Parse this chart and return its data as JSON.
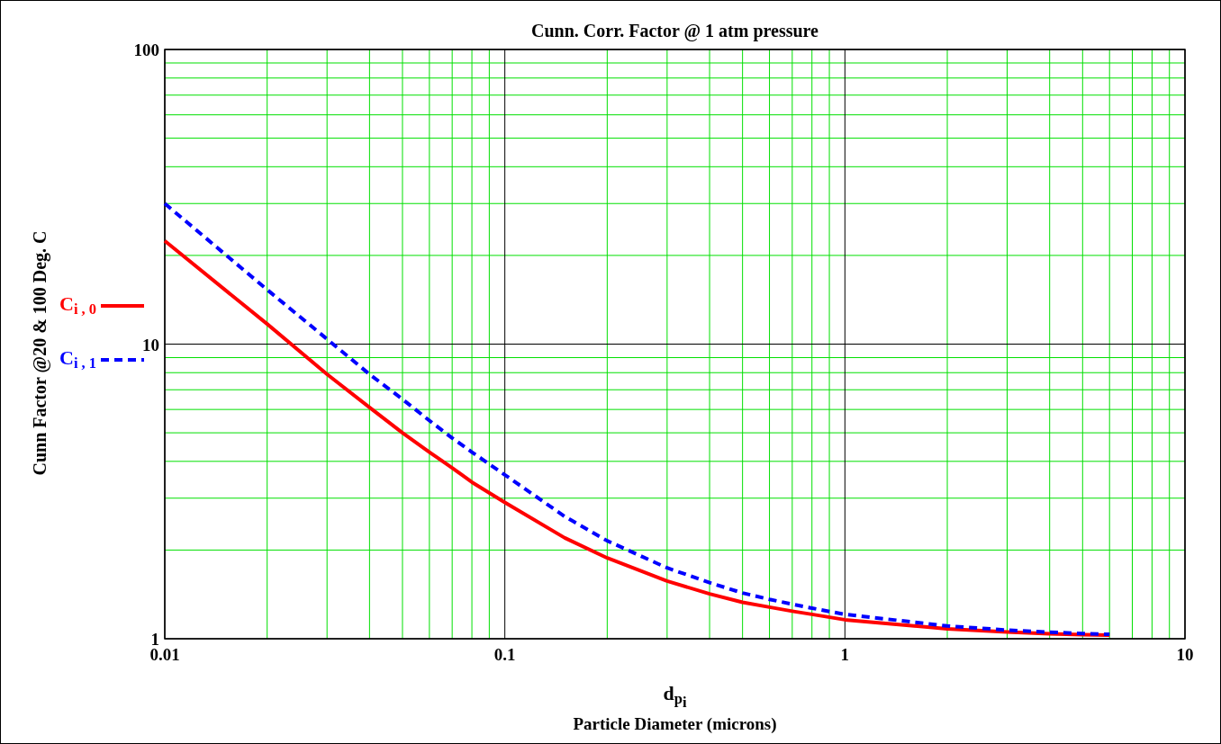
{
  "chart_data": {
    "type": "line",
    "title": "Cunn. Corr. Factor @ 1 atm pressure",
    "xlabel": "d$_{p}$$_{i}$\nParticle Diameter (microns)",
    "ylabel": "Cunn Factor @20 & 100 Deg. C",
    "log": "xy",
    "grid": true,
    "legend": "left",
    "xlim": [
      0.01,
      10
    ],
    "ylim": [
      1,
      100
    ],
    "xticks": [
      0.01,
      {
        "value": 0.02,
        "label": null
      },
      {
        "value": 0.03,
        "label": null
      },
      {
        "value": 0.04,
        "label": null
      },
      {
        "value": 0.05,
        "label": null
      },
      {
        "value": 0.06,
        "label": null
      },
      {
        "value": 0.07,
        "label": null
      },
      {
        "value": 0.08,
        "label": null
      },
      {
        "value": 0.09,
        "label": null
      },
      0.1,
      {
        "value": 0.2,
        "label": null
      },
      {
        "value": 0.3,
        "label": null
      },
      {
        "value": 0.4,
        "label": null
      },
      {
        "value": 0.5,
        "label": null
      },
      {
        "value": 0.6,
        "label": null
      },
      {
        "value": 0.7,
        "label": null
      },
      {
        "value": 0.8,
        "label": null
      },
      {
        "value": 0.9,
        "label": null
      },
      1,
      {
        "value": 2,
        "label": null
      },
      {
        "value": 3,
        "label": null
      },
      {
        "value": 4,
        "label": null
      },
      {
        "value": 5,
        "label": null
      },
      {
        "value": 6,
        "label": null
      },
      {
        "value": 7,
        "label": null
      },
      {
        "value": 8,
        "label": null
      },
      {
        "value": 9,
        "label": null
      },
      10
    ],
    "yticks": [
      1,
      {
        "value": 2,
        "label": null
      },
      {
        "value": 3,
        "label": null
      },
      {
        "value": 4,
        "label": null
      },
      {
        "value": 5,
        "label": null
      },
      {
        "value": 6,
        "label": null
      },
      {
        "value": 7,
        "label": null
      },
      {
        "value": 8,
        "label": null
      },
      {
        "value": 9,
        "label": null
      },
      10,
      {
        "value": 20,
        "label": null
      },
      {
        "value": 30,
        "label": null
      },
      {
        "value": 40,
        "label": null
      },
      {
        "value": 50,
        "label": null
      },
      {
        "value": 60,
        "label": null
      },
      {
        "value": 70,
        "label": null
      },
      {
        "value": 80,
        "label": null
      },
      {
        "value": 90,
        "label": null
      },
      100
    ],
    "x": [
      0.01,
      0.02,
      0.03,
      0.04,
      0.05,
      0.06,
      0.07,
      0.08,
      0.1,
      0.15,
      0.2,
      0.3,
      0.4,
      0.5,
      0.6,
      0.7,
      0.8,
      1,
      2,
      3,
      4,
      5,
      6
    ],
    "series": [
      {
        "name": "C$_{i , 0}$",
        "color": "#ff0000",
        "line_style": "solid",
        "values": [
          22.4,
          11.7,
          7.9,
          6.1,
          5.0,
          4.3,
          3.8,
          3.4,
          2.9,
          2.2,
          1.88,
          1.57,
          1.42,
          1.33,
          1.28,
          1.24,
          1.21,
          1.16,
          1.08,
          1.055,
          1.04,
          1.033,
          1.028
        ]
      },
      {
        "name": "C$_{i , 1}$",
        "color": "#0000ff",
        "line_style": "dashed",
        "values": [
          30.0,
          15.3,
          10.4,
          7.9,
          6.5,
          5.5,
          4.8,
          4.3,
          3.6,
          2.6,
          2.15,
          1.74,
          1.55,
          1.43,
          1.36,
          1.31,
          1.27,
          1.21,
          1.105,
          1.07,
          1.053,
          1.042,
          1.035
        ]
      }
    ]
  }
}
